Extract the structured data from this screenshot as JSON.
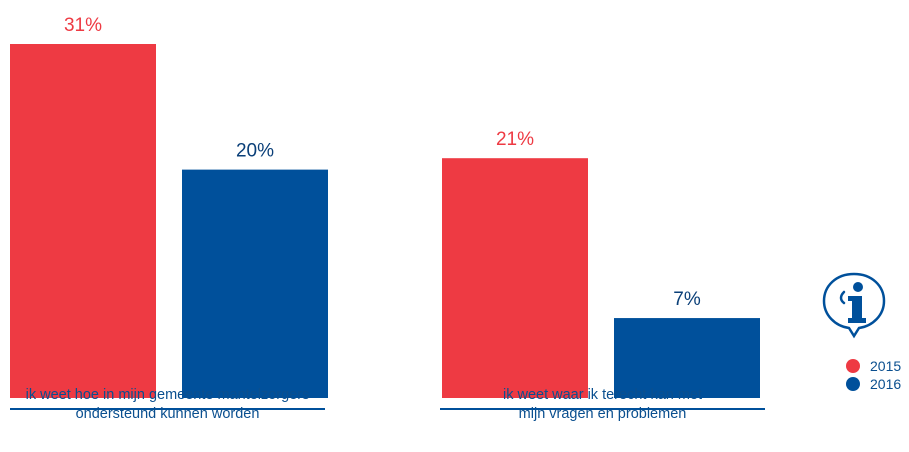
{
  "chart_data": {
    "type": "bar",
    "categories": [
      "ik weet hoe in mijn gemeente mantelzorgers\nondersteund kunnen worden",
      "ik weet waar ik terecht kan met\nmijn vragen en problemen"
    ],
    "series": [
      {
        "name": "2015",
        "values": [
          31,
          21
        ],
        "labels": [
          "31%",
          "21%"
        ],
        "color": "#ee3a43"
      },
      {
        "name": "2016",
        "values": [
          20,
          7
        ],
        "labels": [
          "20%",
          "7%"
        ],
        "color": "#00509b"
      }
    ],
    "ylim": [
      0,
      31
    ],
    "grid": false,
    "legend_placement": "bottom-right",
    "axis_color": "#00509b"
  },
  "legend": {
    "items": [
      {
        "label": "2015",
        "color": "#ee3a43"
      },
      {
        "label": "2016",
        "color": "#00509b"
      }
    ]
  },
  "icons": {
    "info": "info-icon"
  }
}
